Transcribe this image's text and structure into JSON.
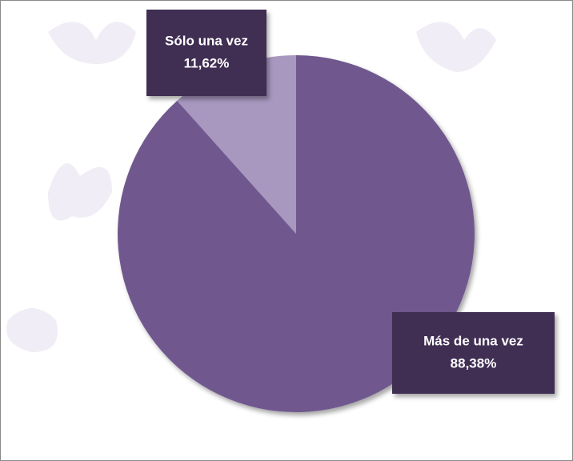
{
  "chart_data": {
    "type": "pie",
    "categories": [
      "Más de una vez",
      "Sólo una vez"
    ],
    "values": [
      88.38,
      11.62
    ],
    "value_labels": [
      "88,38%",
      "11,62%"
    ],
    "colors": [
      "#6f588f",
      "#a897bf"
    ],
    "start_angle": 0,
    "direction": "clockwise"
  }
}
